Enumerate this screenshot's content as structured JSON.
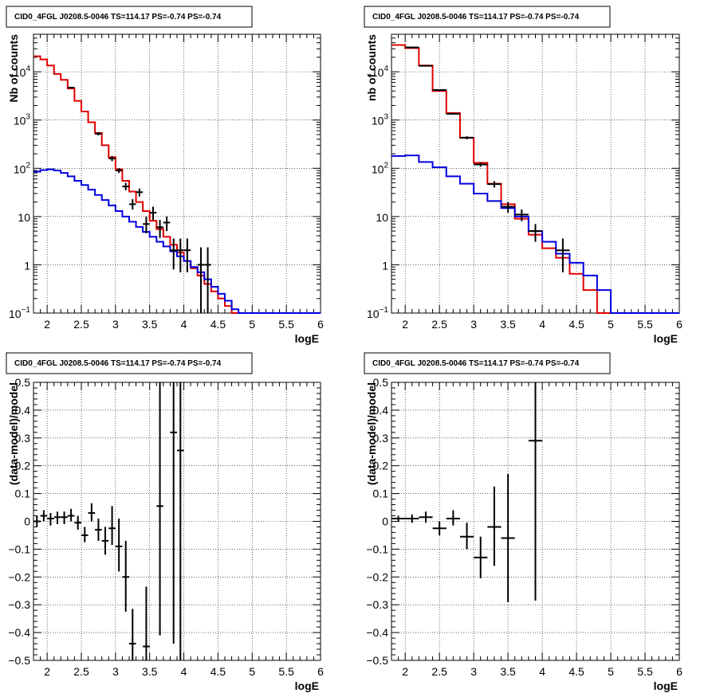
{
  "chart_data": [
    {
      "type": "line",
      "title": "CID0_4FGL J0208.5-0046 TS=114.17 PS=-0.74 PS=-0.74",
      "xlabel": "logE",
      "ylabel": "Nb of counts",
      "xlim": [
        1.8,
        6
      ],
      "ylim": [
        0.1,
        60000
      ],
      "yscale": "log",
      "grid": true,
      "x_ticks": [
        "2",
        "2.5",
        "3",
        "3.5",
        "4",
        "4.5",
        "5",
        "5.5",
        "6"
      ],
      "y_ticks": [
        {
          "value": 0.1,
          "base": "10",
          "exp": "−1"
        },
        {
          "value": 1,
          "label": "1"
        },
        {
          "value": 10,
          "label": "10"
        },
        {
          "value": 100,
          "base": "10",
          "exp": "2"
        },
        {
          "value": 1000,
          "base": "10",
          "exp": "3"
        },
        {
          "value": 10000,
          "base": "10",
          "exp": "4"
        }
      ],
      "bin_edges": [
        1.8,
        1.9,
        2.0,
        2.1,
        2.2,
        2.3,
        2.4,
        2.5,
        2.6,
        2.7,
        2.8,
        2.9,
        3.0,
        3.1,
        3.2,
        3.3,
        3.4,
        3.5,
        3.6,
        3.7,
        3.8,
        3.9,
        4.0,
        4.1,
        4.2,
        4.3,
        4.4,
        4.5,
        4.6,
        4.7,
        4.8,
        4.9,
        5.0,
        5.1,
        5.2,
        5.3,
        5.4,
        5.5,
        5.6,
        5.7,
        5.8,
        5.9,
        6.0
      ],
      "series": [
        {
          "style": "red-histogram",
          "color": "#e00000",
          "values": [
            21000,
            18000,
            13500,
            9000,
            6800,
            4500,
            2500,
            1500,
            900,
            540,
            300,
            170,
            95,
            55,
            33,
            20,
            13,
            8.2,
            5.5,
            3.8,
            2.6,
            1.8,
            1.2,
            0.85,
            0.6,
            0.4,
            0.28,
            0.2,
            0.14,
            0.1,
            0.1,
            0.1,
            0.1,
            0.1,
            0.1,
            0.1,
            0.1,
            0.1,
            0.1,
            0.1,
            0.1,
            0.1
          ]
        },
        {
          "style": "blue-histogram",
          "color": "#0000e0",
          "values": [
            85,
            92,
            95,
            90,
            80,
            68,
            55,
            45,
            36,
            28,
            22,
            17,
            13,
            10,
            7.8,
            6.1,
            4.8,
            3.8,
            3.0,
            2.4,
            1.9,
            1.5,
            1.2,
            0.9,
            0.7,
            0.5,
            0.35,
            0.25,
            0.18,
            0.12,
            0.1,
            0.1,
            0.1,
            0.1,
            0.1,
            0.1,
            0.1,
            0.1,
            0.1,
            0.1,
            0.1,
            0.1
          ]
        }
      ],
      "data_points": [
        {
          "x": 2.35,
          "y": 4700,
          "xerr": 0.05,
          "ylo": 4600,
          "yhi": 4800
        },
        {
          "x": 2.75,
          "y": 520,
          "xerr": 0.05,
          "ylo": 480,
          "yhi": 560
        },
        {
          "x": 2.95,
          "y": 160,
          "xerr": 0.05,
          "ylo": 140,
          "yhi": 180
        },
        {
          "x": 3.05,
          "y": 90,
          "xerr": 0.05,
          "ylo": 80,
          "yhi": 100
        },
        {
          "x": 3.15,
          "y": 42,
          "xerr": 0.05,
          "ylo": 35,
          "yhi": 50
        },
        {
          "x": 3.25,
          "y": 18,
          "xerr": 0.05,
          "ylo": 14,
          "yhi": 23
        },
        {
          "x": 3.35,
          "y": 32,
          "xerr": 0.05,
          "ylo": 26,
          "yhi": 38
        },
        {
          "x": 3.45,
          "y": 7,
          "xerr": 0.05,
          "ylo": 4.5,
          "yhi": 10
        },
        {
          "x": 3.55,
          "y": 12,
          "xerr": 0.05,
          "ylo": 8.5,
          "yhi": 16
        },
        {
          "x": 3.65,
          "y": 6,
          "xerr": 0.05,
          "ylo": 3.6,
          "yhi": 8.5
        },
        {
          "x": 3.75,
          "y": 7.5,
          "xerr": 0.05,
          "ylo": 5,
          "yhi": 10
        },
        {
          "x": 3.85,
          "y": 2,
          "xerr": 0.05,
          "ylo": 0.8,
          "yhi": 3.5
        },
        {
          "x": 3.95,
          "y": 2,
          "xerr": 0.05,
          "ylo": 0.7,
          "yhi": 3.5
        },
        {
          "x": 4.05,
          "y": 2,
          "xerr": 0.05,
          "ylo": 0.7,
          "yhi": 3.5
        },
        {
          "x": 4.25,
          "y": 1,
          "xerr": 0.05,
          "ylo": 0.1,
          "yhi": 2.3
        },
        {
          "x": 4.35,
          "y": 1,
          "xerr": 0.05,
          "ylo": 0.1,
          "yhi": 2.3
        }
      ]
    },
    {
      "type": "line",
      "title": "CID0_4FGL J0208.5-0046 TS=114.17 PS=-0.74 PS=-0.74",
      "xlabel": "logE",
      "ylabel": "nb of counts",
      "xlim": [
        1.8,
        6
      ],
      "ylim": [
        0.1,
        60000
      ],
      "yscale": "log",
      "grid": true,
      "x_ticks": [
        "2",
        "2.5",
        "3",
        "3.5",
        "4",
        "4.5",
        "5",
        "5.5",
        "6"
      ],
      "y_ticks": [
        {
          "value": 0.1,
          "base": "10",
          "exp": "−1"
        },
        {
          "value": 1,
          "label": "1"
        },
        {
          "value": 10,
          "label": "10"
        },
        {
          "value": 100,
          "base": "10",
          "exp": "2"
        },
        {
          "value": 1000,
          "base": "10",
          "exp": "3"
        },
        {
          "value": 10000,
          "base": "10",
          "exp": "4"
        }
      ],
      "bin_edges": [
        1.8,
        2.0,
        2.2,
        2.4,
        2.6,
        2.8,
        3.0,
        3.2,
        3.4,
        3.6,
        3.8,
        4.0,
        4.2,
        4.4,
        4.6,
        4.8,
        5.0,
        5.2,
        5.4,
        5.6,
        5.8,
        6.0
      ],
      "series": [
        {
          "style": "red-histogram",
          "color": "#e00000",
          "values": [
            36000,
            31000,
            13500,
            4000,
            1400,
            430,
            130,
            48,
            18,
            9,
            4.2,
            2.2,
            1.4,
            0.65,
            0.3,
            0.1,
            0.1,
            0.1,
            0.1,
            0.1,
            0.1
          ]
        },
        {
          "style": "blue-histogram",
          "color": "#0000e0",
          "values": [
            180,
            185,
            135,
            105,
            68,
            48,
            30,
            21,
            15,
            10,
            5,
            3,
            1.7,
            1.1,
            0.6,
            0.3,
            0.1,
            0.1,
            0.1,
            0.1,
            0.1
          ]
        }
      ],
      "data_points": [
        {
          "x": 2.1,
          "y": 32000,
          "xerr": 0.1,
          "ylo": 31500,
          "yhi": 32500
        },
        {
          "x": 2.3,
          "y": 13300,
          "xerr": 0.1,
          "ylo": 13100,
          "yhi": 13500
        },
        {
          "x": 2.5,
          "y": 4200,
          "xerr": 0.1,
          "ylo": 4100,
          "yhi": 4300
        },
        {
          "x": 2.7,
          "y": 1350,
          "xerr": 0.1,
          "ylo": 1300,
          "yhi": 1400
        },
        {
          "x": 2.9,
          "y": 430,
          "xerr": 0.1,
          "ylo": 400,
          "yhi": 460
        },
        {
          "x": 3.1,
          "y": 120,
          "xerr": 0.1,
          "ylo": 108,
          "yhi": 132
        },
        {
          "x": 3.3,
          "y": 47,
          "xerr": 0.1,
          "ylo": 40,
          "yhi": 54
        },
        {
          "x": 3.5,
          "y": 16,
          "xerr": 0.1,
          "ylo": 12,
          "yhi": 20
        },
        {
          "x": 3.7,
          "y": 11,
          "xerr": 0.1,
          "ylo": 8,
          "yhi": 14
        },
        {
          "x": 3.9,
          "y": 5,
          "xerr": 0.1,
          "ylo": 3,
          "yhi": 7
        },
        {
          "x": 4.3,
          "y": 2,
          "xerr": 0.1,
          "ylo": 0.7,
          "yhi": 3.5
        }
      ]
    },
    {
      "type": "scatter",
      "title": "CID0_4FGL J0208.5-0046 TS=114.17 PS=-0.74 PS=-0.74",
      "xlabel": "logE",
      "ylabel": "(data-model)/model",
      "xlim": [
        1.8,
        6
      ],
      "ylim": [
        -0.5,
        0.5
      ],
      "grid": true,
      "x_ticks": [
        "2",
        "2.5",
        "3",
        "3.5",
        "4",
        "4.5",
        "5",
        "5.5",
        "6"
      ],
      "y_ticks": [
        "−0.5",
        "−0.4",
        "−0.3",
        "−0.2",
        "−0.1",
        "0",
        "0.1",
        "0.2",
        "0.3",
        "0.4",
        "0.5"
      ],
      "data_points": [
        {
          "x": 1.85,
          "y": 0.0,
          "xerr": 0.05,
          "ylo": -0.02,
          "yhi": 0.02
        },
        {
          "x": 1.95,
          "y": 0.02,
          "xerr": 0.05,
          "ylo": 0.0,
          "yhi": 0.04
        },
        {
          "x": 2.05,
          "y": 0.01,
          "xerr": 0.05,
          "ylo": -0.015,
          "yhi": 0.03
        },
        {
          "x": 2.15,
          "y": 0.015,
          "xerr": 0.05,
          "ylo": -0.01,
          "yhi": 0.035
        },
        {
          "x": 2.25,
          "y": 0.015,
          "xerr": 0.05,
          "ylo": -0.01,
          "yhi": 0.035
        },
        {
          "x": 2.35,
          "y": 0.02,
          "xerr": 0.05,
          "ylo": 0.0,
          "yhi": 0.045
        },
        {
          "x": 2.45,
          "y": -0.005,
          "xerr": 0.05,
          "ylo": -0.03,
          "yhi": 0.02
        },
        {
          "x": 2.55,
          "y": -0.05,
          "xerr": 0.05,
          "ylo": -0.075,
          "yhi": -0.02
        },
        {
          "x": 2.65,
          "y": 0.03,
          "xerr": 0.05,
          "ylo": 0.0,
          "yhi": 0.065
        },
        {
          "x": 2.75,
          "y": -0.03,
          "xerr": 0.05,
          "ylo": -0.07,
          "yhi": 0.01
        },
        {
          "x": 2.85,
          "y": -0.07,
          "xerr": 0.05,
          "ylo": -0.12,
          "yhi": -0.02
        },
        {
          "x": 2.95,
          "y": -0.025,
          "xerr": 0.05,
          "ylo": -0.085,
          "yhi": 0.055
        },
        {
          "x": 3.05,
          "y": -0.09,
          "xerr": 0.05,
          "ylo": -0.18,
          "yhi": 0.01
        },
        {
          "x": 3.15,
          "y": -0.2,
          "xerr": 0.05,
          "ylo": -0.325,
          "yhi": -0.07
        },
        {
          "x": 3.25,
          "y": -0.44,
          "xerr": 0.05,
          "ylo": -0.5,
          "yhi": -0.315
        },
        {
          "x": 3.45,
          "y": -0.45,
          "xerr": 0.05,
          "ylo": -0.5,
          "yhi": -0.235
        },
        {
          "x": 3.65,
          "y": 0.055,
          "xerr": 0.05,
          "ylo": -0.41,
          "yhi": 0.5
        },
        {
          "x": 3.85,
          "y": 0.32,
          "xerr": 0.05,
          "ylo": -0.44,
          "yhi": 0.5
        },
        {
          "x": 3.95,
          "y": 0.255,
          "xerr": 0.05,
          "ylo": -0.5,
          "yhi": 0.5
        }
      ]
    },
    {
      "type": "scatter",
      "title": "CID0_4FGL J0208.5-0046 TS=114.17 PS=-0.74 PS=-0.74",
      "xlabel": "logE",
      "ylabel": "(data-model)/model",
      "xlim": [
        1.8,
        6
      ],
      "ylim": [
        -0.5,
        0.5
      ],
      "grid": true,
      "x_ticks": [
        "2",
        "2.5",
        "3",
        "3.5",
        "4",
        "4.5",
        "5",
        "5.5",
        "6"
      ],
      "y_ticks": [
        "−0.5",
        "−0.4",
        "−0.3",
        "−0.2",
        "−0.1",
        "0",
        "0.1",
        "0.2",
        "0.3",
        "0.4",
        "0.5"
      ],
      "data_points": [
        {
          "x": 1.9,
          "y": 0.01,
          "xerr": 0.1,
          "ylo": 0.0,
          "yhi": 0.02
        },
        {
          "x": 2.1,
          "y": 0.01,
          "xerr": 0.1,
          "ylo": -0.005,
          "yhi": 0.025
        },
        {
          "x": 2.3,
          "y": 0.015,
          "xerr": 0.1,
          "ylo": -0.005,
          "yhi": 0.035
        },
        {
          "x": 2.5,
          "y": -0.025,
          "xerr": 0.1,
          "ylo": -0.05,
          "yhi": 0.0
        },
        {
          "x": 2.7,
          "y": 0.01,
          "xerr": 0.1,
          "ylo": -0.015,
          "yhi": 0.04
        },
        {
          "x": 2.9,
          "y": -0.055,
          "xerr": 0.1,
          "ylo": -0.1,
          "yhi": -0.005
        },
        {
          "x": 3.1,
          "y": -0.13,
          "xerr": 0.1,
          "ylo": -0.205,
          "yhi": -0.055
        },
        {
          "x": 3.3,
          "y": -0.02,
          "xerr": 0.1,
          "ylo": -0.16,
          "yhi": 0.125
        },
        {
          "x": 3.5,
          "y": -0.06,
          "xerr": 0.1,
          "ylo": -0.29,
          "yhi": 0.17
        },
        {
          "x": 3.9,
          "y": 0.29,
          "xerr": 0.1,
          "ylo": -0.285,
          "yhi": 0.5
        }
      ]
    }
  ]
}
